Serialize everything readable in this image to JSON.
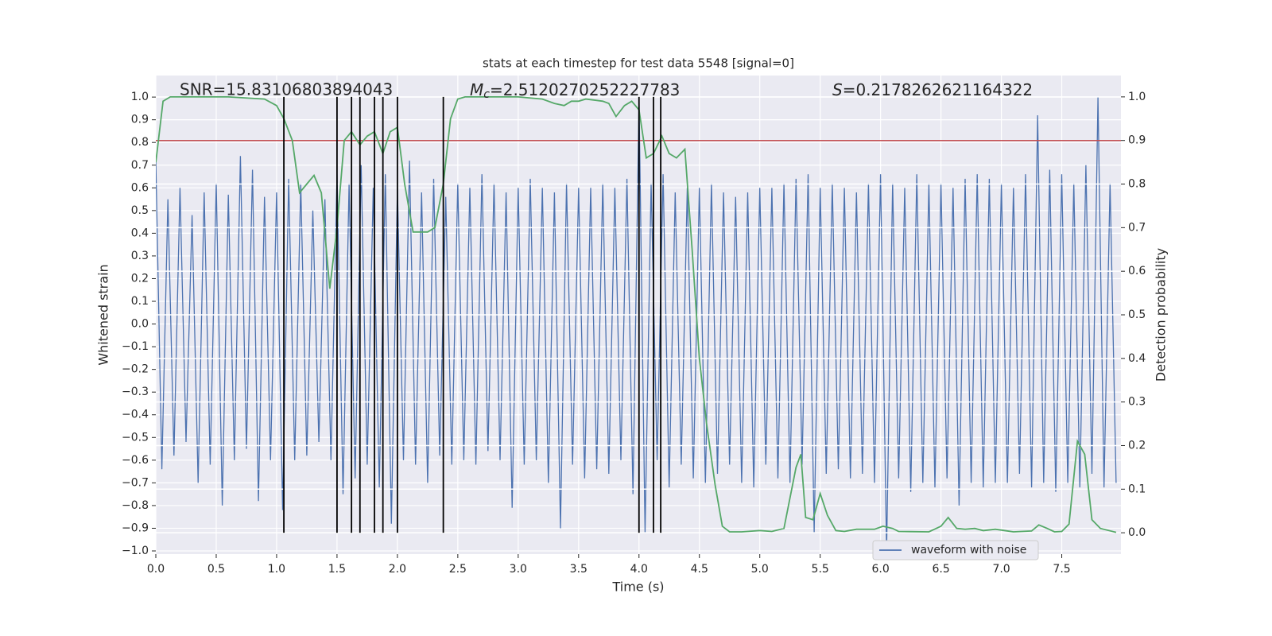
{
  "chart_data": {
    "type": "line",
    "title": "stats at each timestep for test data 5548 [signal=0]",
    "xlabel": "Time (s)",
    "ylabel": "Whitened strain",
    "y2label": "Detection probability",
    "annotations": [
      {
        "text": "SNR=15.83106803894043"
      },
      {
        "symbol": "M",
        "subscript": "c",
        "text": "=2.5120270252227783"
      },
      {
        "symbol": "S",
        "text": "=0.2178262621164322"
      }
    ],
    "xlim": [
      0,
      7.99
    ],
    "ylim": [
      -1.014,
      1.095
    ],
    "y2lim": [
      -0.049,
      1.049
    ],
    "xticks": [
      {
        "value": 0,
        "label": "0.0"
      },
      {
        "value": 0.5,
        "label": "0.5"
      },
      {
        "value": 1,
        "label": "1.0"
      },
      {
        "value": 1.5,
        "label": "1.5"
      },
      {
        "value": 2,
        "label": "2.0"
      },
      {
        "value": 2.5,
        "label": "2.5"
      },
      {
        "value": 3,
        "label": "3.0"
      },
      {
        "value": 3.5,
        "label": "3.5"
      },
      {
        "value": 4,
        "label": "4.0"
      },
      {
        "value": 4.5,
        "label": "4.5"
      },
      {
        "value": 5,
        "label": "5.0"
      },
      {
        "value": 5.5,
        "label": "5.5"
      },
      {
        "value": 6,
        "label": "6.0"
      },
      {
        "value": 6.5,
        "label": "6.5"
      },
      {
        "value": 7,
        "label": "7.0"
      },
      {
        "value": 7.5,
        "label": "7.5"
      }
    ],
    "yticks": [
      {
        "value": -1,
        "label": "−1.0"
      },
      {
        "value": -0.9,
        "label": "−0.9"
      },
      {
        "value": -0.8,
        "label": "−0.8"
      },
      {
        "value": -0.7,
        "label": "−0.7"
      },
      {
        "value": -0.6,
        "label": "−0.6"
      },
      {
        "value": -0.5,
        "label": "−0.5"
      },
      {
        "value": -0.4,
        "label": "−0.4"
      },
      {
        "value": -0.3,
        "label": "−0.3"
      },
      {
        "value": -0.2,
        "label": "−0.2"
      },
      {
        "value": -0.1,
        "label": "−0.1"
      },
      {
        "value": 0,
        "label": "0.0"
      },
      {
        "value": 0.1,
        "label": "0.1"
      },
      {
        "value": 0.2,
        "label": "0.2"
      },
      {
        "value": 0.3,
        "label": "0.3"
      },
      {
        "value": 0.4,
        "label": "0.4"
      },
      {
        "value": 0.5,
        "label": "0.5"
      },
      {
        "value": 0.6,
        "label": "0.6"
      },
      {
        "value": 0.7,
        "label": "0.7"
      },
      {
        "value": 0.8,
        "label": "0.8"
      },
      {
        "value": 0.9,
        "label": "0.9"
      },
      {
        "value": 1,
        "label": "1.0"
      }
    ],
    "y2ticks": [
      {
        "value": 0,
        "label": "0.0"
      },
      {
        "value": 0.1,
        "label": "0.1"
      },
      {
        "value": 0.2,
        "label": "0.2"
      },
      {
        "value": 0.3,
        "label": "0.3"
      },
      {
        "value": 0.4,
        "label": "0.4"
      },
      {
        "value": 0.5,
        "label": "0.5"
      },
      {
        "value": 0.6,
        "label": "0.6"
      },
      {
        "value": 0.7,
        "label": "0.7"
      },
      {
        "value": 0.8,
        "label": "0.8"
      },
      {
        "value": 0.9,
        "label": "0.9"
      },
      {
        "value": 1,
        "label": "1.0"
      }
    ],
    "grid": true,
    "legend": "lower right",
    "series": [
      {
        "name": "waveform with noise",
        "color": "#4c72b0",
        "x": [
          0,
          0.05,
          0.1,
          0.15,
          0.2,
          0.25,
          0.3,
          0.35,
          0.4,
          0.45,
          0.5,
          0.55,
          0.6,
          0.65,
          0.7,
          0.75,
          0.8,
          0.85,
          0.9,
          0.95,
          1,
          1.05,
          1.1,
          1.15,
          1.2,
          1.25,
          1.3,
          1.35,
          1.4,
          1.45,
          1.5,
          1.55,
          1.6,
          1.65,
          1.7,
          1.75,
          1.8,
          1.85,
          1.9,
          1.95,
          2,
          2.05,
          2.1,
          2.15,
          2.2,
          2.25,
          2.3,
          2.35,
          2.4,
          2.45,
          2.5,
          2.55,
          2.6,
          2.65,
          2.7,
          2.75,
          2.8,
          2.85,
          2.9,
          2.95,
          3,
          3.05,
          3.1,
          3.15,
          3.2,
          3.25,
          3.3,
          3.35,
          3.4,
          3.45,
          3.5,
          3.55,
          3.6,
          3.65,
          3.7,
          3.75,
          3.8,
          3.85,
          3.9,
          3.95,
          4,
          4.05,
          4.1,
          4.15,
          4.2,
          4.25,
          4.3,
          4.35,
          4.4,
          4.45,
          4.5,
          4.55,
          4.6,
          4.65,
          4.7,
          4.75,
          4.8,
          4.85,
          4.9,
          4.95,
          5,
          5.05,
          5.1,
          5.15,
          5.2,
          5.25,
          5.3,
          5.35,
          5.4,
          5.45,
          5.5,
          5.55,
          5.6,
          5.65,
          5.7,
          5.75,
          5.8,
          5.85,
          5.9,
          5.95,
          6,
          6.05,
          6.1,
          6.15,
          6.2,
          6.25,
          6.3,
          6.35,
          6.4,
          6.45,
          6.5,
          6.55,
          6.6,
          6.65,
          6.7,
          6.75,
          6.8,
          6.85,
          6.9,
          6.95,
          7,
          7.05,
          7.1,
          7.15,
          7.2,
          7.25,
          7.3,
          7.35,
          7.4,
          7.45,
          7.5,
          7.55,
          7.6,
          7.65,
          7.7,
          7.75,
          7.8,
          7.85,
          7.9,
          7.95
        ],
        "values": [
          0.72,
          -0.64,
          0.55,
          -0.58,
          0.6,
          -0.52,
          0.48,
          -0.7,
          0.58,
          -0.62,
          0.62,
          -0.8,
          0.57,
          -0.6,
          0.74,
          -0.55,
          0.68,
          -0.78,
          0.56,
          -0.6,
          0.58,
          -0.82,
          0.64,
          -0.6,
          0.62,
          -0.58,
          0.5,
          -0.52,
          0.55,
          -0.6,
          0.66,
          -0.75,
          0.62,
          -0.68,
          0.7,
          -0.62,
          0.6,
          -0.72,
          0.66,
          -0.88,
          0.6,
          -0.6,
          0.72,
          -0.62,
          0.58,
          -0.7,
          0.64,
          -0.58,
          0.56,
          -0.62,
          0.62,
          -0.6,
          0.6,
          -0.62,
          0.66,
          -0.56,
          0.62,
          -0.6,
          0.58,
          -0.81,
          0.6,
          -0.62,
          0.64,
          -0.6,
          0.6,
          -0.7,
          0.58,
          -0.9,
          0.62,
          -0.62,
          0.6,
          -0.68,
          0.6,
          -0.64,
          0.62,
          -0.66,
          0.6,
          -0.6,
          0.64,
          -0.75,
          0.99,
          -0.92,
          0.62,
          -0.6,
          0.66,
          -0.72,
          0.58,
          -0.62,
          0.6,
          -0.68,
          0.6,
          -0.7,
          0.62,
          -0.66,
          0.58,
          -0.62,
          0.56,
          -0.7,
          0.58,
          -0.72,
          0.6,
          -0.62,
          0.6,
          -0.68,
          0.62,
          -0.7,
          0.64,
          -0.62,
          0.66,
          -0.92,
          0.6,
          -0.66,
          0.62,
          -0.64,
          0.6,
          -0.68,
          0.58,
          -0.66,
          0.62,
          -0.7,
          0.66,
          -1.0,
          0.62,
          -0.68,
          0.6,
          -0.74,
          0.66,
          -0.7,
          0.62,
          -0.72,
          0.62,
          -0.68,
          0.6,
          -0.8,
          0.64,
          -0.7,
          0.66,
          -0.72,
          0.64,
          -0.7,
          0.62,
          -0.7,
          0.6,
          -0.66,
          0.66,
          -0.72,
          0.92,
          -0.7,
          0.68,
          -0.74,
          0.66,
          -0.7,
          0.62,
          -0.72,
          0.7,
          -0.66,
          1.0,
          -0.72,
          0.62,
          -0.7
        ]
      },
      {
        "color": "#55a868",
        "axis": "y2",
        "x": [
          0,
          0.06,
          0.12,
          0.3,
          0.6,
          0.9,
          1,
          1.06,
          1.13,
          1.19,
          1.25,
          1.31,
          1.37,
          1.44,
          1.5,
          1.56,
          1.62,
          1.69,
          1.75,
          1.81,
          1.88,
          1.94,
          2,
          2.06,
          2.13,
          2.19,
          2.25,
          2.31,
          2.38,
          2.44,
          2.5,
          2.56,
          2.7,
          3,
          3.2,
          3.3,
          3.38,
          3.44,
          3.5,
          3.56,
          3.7,
          3.75,
          3.81,
          3.88,
          3.94,
          4,
          4.06,
          4.12,
          4.19,
          4.25,
          4.31,
          4.38,
          4.44,
          4.5,
          4.56,
          4.63,
          4.69,
          4.75,
          4.85,
          5,
          5.1,
          5.2,
          5.25,
          5.3,
          5.34,
          5.38,
          5.44,
          5.5,
          5.56,
          5.63,
          5.7,
          5.8,
          5.95,
          6.02,
          6.1,
          6.15,
          6.4,
          6.5,
          6.56,
          6.63,
          6.7,
          6.78,
          6.85,
          6.95,
          7.1,
          7.25,
          7.31,
          7.38,
          7.44,
          7.5,
          7.56,
          7.63,
          7.69,
          7.75,
          7.82,
          7.95
        ],
        "values": [
          0.85,
          0.99,
          1.0,
          1.0,
          1.0,
          0.995,
          0.98,
          0.95,
          0.9,
          0.78,
          0.8,
          0.82,
          0.78,
          0.56,
          0.7,
          0.9,
          0.92,
          0.89,
          0.91,
          0.92,
          0.87,
          0.92,
          0.93,
          0.8,
          0.69,
          0.69,
          0.69,
          0.7,
          0.8,
          0.95,
          0.995,
          1.0,
          1.0,
          1.0,
          0.995,
          0.985,
          0.98,
          0.99,
          0.99,
          0.995,
          0.99,
          0.985,
          0.955,
          0.98,
          0.99,
          0.97,
          0.86,
          0.87,
          0.91,
          0.87,
          0.86,
          0.88,
          0.65,
          0.4,
          0.25,
          0.11,
          0.015,
          0.002,
          0.002,
          0.005,
          0.003,
          0.01,
          0.08,
          0.15,
          0.18,
          0.035,
          0.03,
          0.09,
          0.04,
          0.005,
          0.003,
          0.008,
          0.008,
          0.015,
          0.01,
          0.003,
          0.002,
          0.015,
          0.035,
          0.01,
          0.008,
          0.01,
          0.005,
          0.008,
          0.002,
          0.004,
          0.018,
          0.01,
          0.002,
          0.003,
          0.02,
          0.21,
          0.18,
          0.03,
          0.01,
          0.001
        ]
      }
    ],
    "threshold": {
      "value": 0.9,
      "axis": "y2",
      "color": "#c44e52"
    },
    "vlines": {
      "x": [
        1.06,
        1.5,
        1.62,
        1.69,
        1.81,
        1.88,
        2.0,
        2.38,
        4.0,
        4.12,
        4.18
      ],
      "ymin": 0,
      "ymax": 1,
      "axis": "y2",
      "color": "#000000"
    }
  }
}
